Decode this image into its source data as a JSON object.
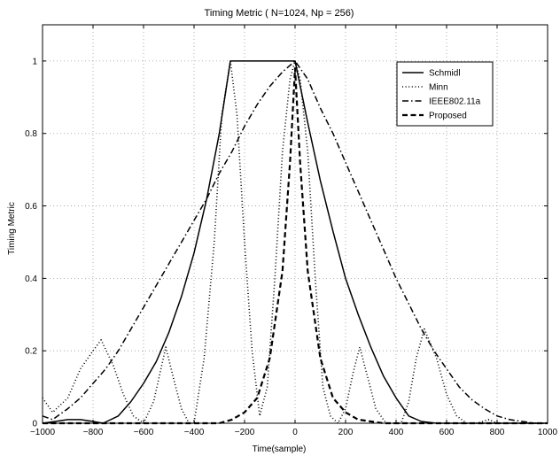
{
  "chart_data": {
    "type": "line",
    "title": "Timing Metric ( N=1024, Np = 256)",
    "xlabel": "Time(sample)",
    "ylabel": "Timing Metric",
    "xlim": [
      -1000,
      1000
    ],
    "ylim": [
      0,
      1.1
    ],
    "grid": true,
    "legend_position": "top-right",
    "xticks": [
      -1000,
      -800,
      -600,
      -400,
      -200,
      0,
      200,
      400,
      600,
      800,
      1000
    ],
    "yticks": [
      0,
      0.2,
      0.4,
      0.6,
      0.8,
      1
    ],
    "xtick_labels": [
      "−1000",
      "−800",
      "−600",
      "−400",
      "−200",
      "0",
      "200",
      "400",
      "600",
      "800",
      "1000"
    ],
    "ytick_labels": [
      "0",
      "0.2",
      "0.4",
      "0.6",
      "0.8",
      "1"
    ],
    "series": [
      {
        "name": "Schmidl",
        "style": "solid",
        "x": [
          -1000,
          -950,
          -900,
          -850,
          -800,
          -760,
          -700,
          -650,
          -600,
          -550,
          -500,
          -450,
          -400,
          -350,
          -300,
          -256,
          -200,
          -100,
          0,
          50,
          100,
          150,
          200,
          250,
          300,
          350,
          400,
          450,
          500,
          560,
          600,
          700,
          800,
          1000
        ],
        "y": [
          0.0,
          0.005,
          0.01,
          0.01,
          0.005,
          0.0,
          0.02,
          0.06,
          0.11,
          0.17,
          0.25,
          0.35,
          0.47,
          0.62,
          0.8,
          1.0,
          1.0,
          1.0,
          1.0,
          0.83,
          0.67,
          0.53,
          0.4,
          0.3,
          0.21,
          0.13,
          0.07,
          0.02,
          0.005,
          0.0,
          0.0,
          0.0,
          0.0,
          0.0
        ]
      },
      {
        "name": "Minn",
        "style": "dotted",
        "x": [
          -1000,
          -960,
          -900,
          -850,
          -800,
          -768,
          -720,
          -680,
          -640,
          -600,
          -560,
          -512,
          -480,
          -450,
          -420,
          -400,
          -360,
          -320,
          -290,
          -256,
          -230,
          -200,
          -170,
          -140,
          -110,
          -80,
          -50,
          -20,
          0,
          20,
          50,
          80,
          110,
          140,
          170,
          200,
          230,
          256,
          290,
          320,
          360,
          400,
          420,
          450,
          480,
          512,
          560,
          600,
          640,
          680,
          720,
          768,
          800,
          850,
          900,
          960,
          1000
        ],
        "y": [
          0.07,
          0.03,
          0.07,
          0.15,
          0.2,
          0.23,
          0.16,
          0.08,
          0.02,
          0.0,
          0.06,
          0.21,
          0.12,
          0.04,
          0.0,
          0.0,
          0.18,
          0.5,
          0.85,
          1.0,
          0.85,
          0.5,
          0.2,
          0.02,
          0.1,
          0.4,
          0.75,
          0.95,
          1.0,
          0.95,
          0.75,
          0.4,
          0.1,
          0.02,
          0.0,
          0.04,
          0.14,
          0.21,
          0.12,
          0.04,
          0.0,
          0.0,
          0.0,
          0.06,
          0.18,
          0.26,
          0.18,
          0.08,
          0.02,
          0.0,
          0.0,
          0.01,
          0.0,
          0.0,
          0.0,
          0.0,
          0.0
        ]
      },
      {
        "name": "IEEE802.11a",
        "style": "dashdot",
        "x": [
          -1000,
          -960,
          -900,
          -850,
          -800,
          -750,
          -700,
          -650,
          -600,
          -550,
          -500,
          -450,
          -400,
          -350,
          -300,
          -250,
          -200,
          -150,
          -100,
          -50,
          0,
          50,
          100,
          150,
          200,
          250,
          300,
          350,
          400,
          450,
          500,
          550,
          600,
          650,
          700,
          750,
          800,
          850,
          900,
          950,
          1000
        ],
        "y": [
          0.02,
          0.01,
          0.04,
          0.07,
          0.11,
          0.15,
          0.2,
          0.26,
          0.32,
          0.38,
          0.44,
          0.5,
          0.56,
          0.62,
          0.69,
          0.75,
          0.82,
          0.88,
          0.93,
          0.97,
          1.0,
          0.95,
          0.87,
          0.8,
          0.72,
          0.64,
          0.56,
          0.48,
          0.4,
          0.33,
          0.26,
          0.2,
          0.15,
          0.1,
          0.065,
          0.04,
          0.02,
          0.01,
          0.005,
          0.0,
          0.0
        ]
      },
      {
        "name": "Proposed",
        "style": "dashed",
        "x": [
          -1000,
          -600,
          -400,
          -300,
          -250,
          -200,
          -150,
          -100,
          -50,
          -20,
          0,
          20,
          50,
          100,
          150,
          200,
          250,
          300,
          350,
          400,
          600,
          1000
        ],
        "y": [
          0.0,
          0.0,
          0.0,
          0.0,
          0.01,
          0.03,
          0.07,
          0.18,
          0.42,
          0.72,
          0.98,
          0.72,
          0.42,
          0.18,
          0.07,
          0.03,
          0.01,
          0.005,
          0.0,
          0.0,
          0.0,
          0.0
        ]
      }
    ]
  }
}
